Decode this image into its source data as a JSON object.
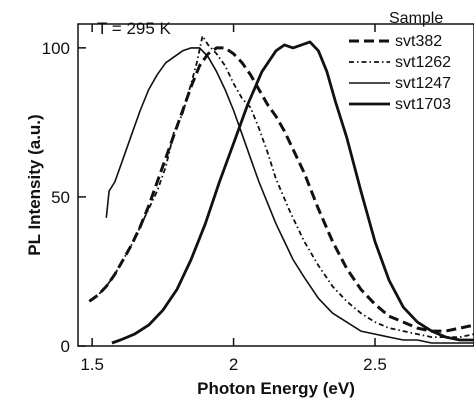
{
  "chart_data": {
    "type": "line",
    "title": "",
    "annotation": "T = 295 K",
    "xlabel": "Photon Energy (eV)",
    "ylabel": "PL Intensity (a.u.)",
    "xlim": [
      1.45,
      2.85
    ],
    "ylim": [
      0,
      108
    ],
    "xticks": [
      1.5,
      2.0,
      2.5
    ],
    "xtick_labels": [
      "1.5",
      "2",
      "2.5"
    ],
    "yticks": [
      0,
      50,
      100
    ],
    "ytick_labels": [
      "0",
      "50",
      "100"
    ],
    "grid": false,
    "legend": {
      "title": "Sample",
      "position": "top-right"
    },
    "series": [
      {
        "name": "svt382",
        "style": "dashed",
        "x": [
          1.49,
          1.52,
          1.55,
          1.58,
          1.61,
          1.64,
          1.67,
          1.7,
          1.73,
          1.76,
          1.79,
          1.82,
          1.85,
          1.88,
          1.91,
          1.94,
          1.97,
          2.0,
          2.03,
          2.06,
          2.09,
          2.12,
          2.15,
          2.18,
          2.21,
          2.25,
          2.3,
          2.35,
          2.4,
          2.45,
          2.5,
          2.55,
          2.6,
          2.65,
          2.7,
          2.75,
          2.8,
          2.85
        ],
        "y": [
          15,
          17,
          20,
          24,
          29,
          34,
          40,
          47,
          55,
          63,
          71,
          79,
          87,
          94,
          98,
          100,
          100,
          98,
          95,
          91,
          86,
          81,
          77,
          72,
          66,
          58,
          46,
          35,
          26,
          19,
          14,
          10,
          8,
          6,
          5,
          5,
          6,
          7
        ]
      },
      {
        "name": "svt1262",
        "style": "dashdot",
        "x": [
          1.49,
          1.52,
          1.55,
          1.58,
          1.61,
          1.64,
          1.67,
          1.7,
          1.73,
          1.76,
          1.79,
          1.82,
          1.85,
          1.87,
          1.89,
          1.91,
          1.94,
          1.97,
          2.0,
          2.03,
          2.06,
          2.09,
          2.12,
          2.15,
          2.2,
          2.25,
          2.3,
          2.35,
          2.4,
          2.45,
          2.5,
          2.55,
          2.6,
          2.65,
          2.7,
          2.75,
          2.8,
          2.85
        ],
        "y": [
          15,
          17,
          20,
          24,
          29,
          34,
          40,
          46,
          52,
          60,
          72,
          78,
          88,
          95,
          104,
          101,
          98,
          94,
          88,
          83,
          80,
          73,
          65,
          56,
          45,
          35,
          27,
          20,
          15,
          11,
          8,
          6,
          5,
          4,
          3,
          3,
          3,
          4
        ]
      },
      {
        "name": "svt1247",
        "style": "solid-thin",
        "x": [
          1.55,
          1.56,
          1.58,
          1.61,
          1.64,
          1.67,
          1.7,
          1.73,
          1.76,
          1.79,
          1.82,
          1.85,
          1.88,
          1.91,
          1.94,
          1.97,
          2.0,
          2.03,
          2.06,
          2.09,
          2.12,
          2.15,
          2.18,
          2.21,
          2.25,
          2.3,
          2.35,
          2.4,
          2.45,
          2.5,
          2.55,
          2.6,
          2.65,
          2.7,
          2.75,
          2.8,
          2.85
        ],
        "y": [
          43,
          52,
          55,
          63,
          71,
          79,
          86,
          91,
          95,
          97,
          99,
          100,
          100,
          97,
          92,
          86,
          79,
          71,
          63,
          55,
          48,
          41,
          35,
          29,
          23,
          16,
          11,
          8,
          5,
          4,
          3,
          2,
          2,
          1,
          1,
          1,
          1
        ]
      },
      {
        "name": "svt1703",
        "style": "solid-thick",
        "x": [
          1.57,
          1.6,
          1.65,
          1.7,
          1.75,
          1.8,
          1.85,
          1.9,
          1.95,
          2.0,
          2.05,
          2.1,
          2.15,
          2.18,
          2.21,
          2.24,
          2.27,
          2.3,
          2.33,
          2.36,
          2.4,
          2.45,
          2.5,
          2.55,
          2.6,
          2.65,
          2.7,
          2.75,
          2.8,
          2.85
        ],
        "y": [
          1,
          2,
          4,
          7,
          12,
          19,
          29,
          41,
          55,
          68,
          81,
          92,
          99,
          101,
          100,
          101,
          102,
          99,
          92,
          82,
          70,
          52,
          35,
          22,
          13,
          8,
          5,
          3,
          2,
          2
        ]
      }
    ]
  }
}
